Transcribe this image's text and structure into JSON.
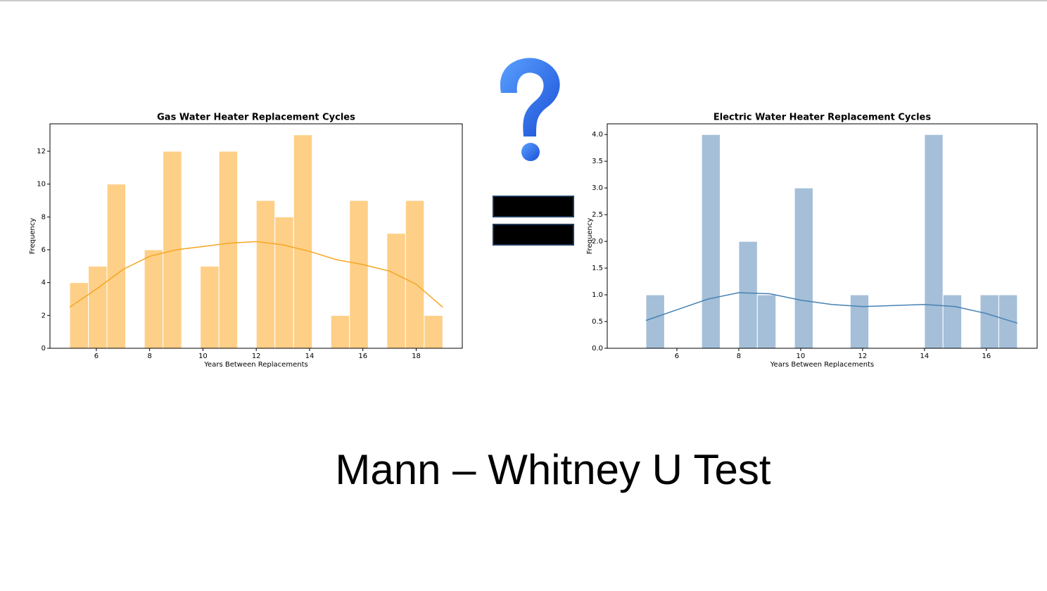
{
  "chart_data": [
    {
      "type": "histogram",
      "title": "Gas Water Heater Replacement Cycles",
      "x_label": "Years Between Replacements",
      "y_label": "Frequency",
      "bins": [
        5,
        5.7,
        6.4,
        7.1,
        7.8,
        8.5,
        9.2,
        9.9,
        10.6,
        11.3,
        12,
        12.7,
        13.4,
        14.1,
        14.8,
        15.5,
        16.2,
        16.9,
        17.6,
        18.3,
        19
      ],
      "values": [
        4,
        5,
        10,
        0,
        6,
        12,
        0,
        5,
        12,
        0,
        9,
        8,
        13,
        0,
        2,
        9,
        0,
        7,
        9,
        2
      ],
      "color": "#fecf87",
      "kde": {
        "color": "#f5a623",
        "x": [
          5,
          6,
          7,
          8,
          9,
          10,
          11,
          12,
          13,
          14,
          15,
          16,
          17,
          18,
          19
        ],
        "values": [
          2.5,
          3.6,
          4.8,
          5.6,
          6.0,
          6.2,
          6.4,
          6.5,
          6.3,
          5.9,
          5.4,
          5.1,
          4.7,
          3.9,
          2.5
        ]
      },
      "xlim": [
        4.26,
        19.73
      ],
      "ylim": [
        0,
        13.67
      ],
      "xticks": [
        6,
        8,
        10,
        12,
        14,
        16,
        18
      ],
      "yticks": [
        0,
        2,
        4,
        6,
        8,
        10,
        12
      ]
    },
    {
      "type": "histogram",
      "title": "Electric Water Heater Replacement Cycles",
      "x_label": "Years Between Replacements",
      "y_label": "Frequency",
      "bins": [
        5,
        5.6,
        6.2,
        6.8,
        7.4,
        8,
        8.6,
        9.2,
        9.8,
        10.4,
        11,
        11.6,
        12.2,
        12.8,
        13.4,
        14,
        14.6,
        15.2,
        15.8,
        16.4,
        17
      ],
      "values": [
        1,
        0,
        0,
        4,
        0,
        2,
        1,
        0,
        3,
        0,
        0,
        1,
        0,
        0,
        0,
        4,
        1,
        0,
        1,
        1
      ],
      "color": "#a5bfd8",
      "kde": {
        "color": "#4682b4",
        "x": [
          5,
          6,
          7,
          8,
          9,
          10,
          11,
          12,
          13,
          14,
          15,
          16,
          17
        ],
        "values": [
          0.52,
          0.72,
          0.92,
          1.04,
          1.02,
          0.9,
          0.82,
          0.78,
          0.8,
          0.82,
          0.78,
          0.65,
          0.47
        ]
      },
      "xlim": [
        3.75,
        17.64
      ],
      "ylim": [
        0,
        4.2
      ],
      "xticks": [
        6,
        8,
        10,
        12,
        14,
        16
      ],
      "yticks": [
        {
          "value": 0,
          "label": "0.0"
        },
        {
          "value": 0.5,
          "label": "0.5"
        },
        {
          "value": 1,
          "label": "1.0"
        },
        {
          "value": 1.5,
          "label": "1.5"
        },
        {
          "value": 2,
          "label": "2.0"
        },
        {
          "value": 2.5,
          "label": "2.5"
        },
        {
          "value": 3,
          "label": "3.0"
        },
        {
          "value": 3.5,
          "label": "3.5"
        },
        {
          "value": 4,
          "label": "4.0"
        }
      ]
    }
  ],
  "caption": "Mann – Whitney U Test"
}
